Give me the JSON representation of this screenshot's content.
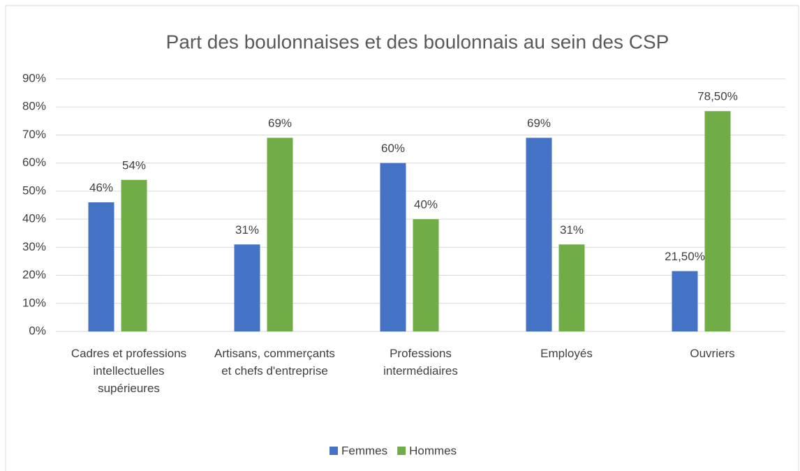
{
  "chart_data": {
    "type": "bar",
    "title": "Part des boulonnaises et des boulonnais au sein des CSP",
    "categories": [
      "Cadres et professions intellectuelles supérieures",
      "Artisans, commerçants et chefs d'entreprise",
      "Professions intermédiaires",
      "Employés",
      "Ouvriers"
    ],
    "series": [
      {
        "name": "Femmes",
        "color": "#4472c4",
        "values": [
          46,
          31,
          60,
          69,
          21.5
        ],
        "value_labels": [
          "46%",
          "31%",
          "60%",
          "69%",
          "21,50%"
        ]
      },
      {
        "name": "Hommes",
        "color": "#70ad47",
        "values": [
          54,
          69,
          40,
          31,
          78.5
        ],
        "value_labels": [
          "54%",
          "69%",
          "40%",
          "31%",
          "78,50%"
        ]
      }
    ],
    "ylim": [
      0,
      90
    ],
    "yticks": [
      {
        "value": 0,
        "label": "0%"
      },
      {
        "value": 10,
        "label": "10%"
      },
      {
        "value": 20,
        "label": "20%"
      },
      {
        "value": 30,
        "label": "30%"
      },
      {
        "value": 40,
        "label": "40%"
      },
      {
        "value": 50,
        "label": "50%"
      },
      {
        "value": 60,
        "label": "60%"
      },
      {
        "value": 70,
        "label": "70%"
      },
      {
        "value": 80,
        "label": "80%"
      },
      {
        "value": 90,
        "label": "90%"
      }
    ],
    "grid": true,
    "legend": "bottom"
  }
}
